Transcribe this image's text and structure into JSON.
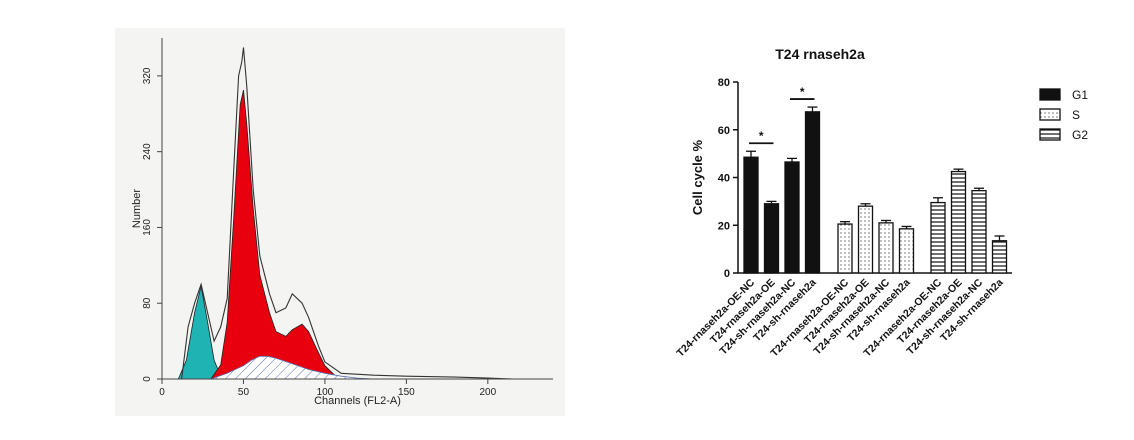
{
  "chart_data": [
    {
      "type": "area",
      "xlabel": "Channels (FL2-A)",
      "ylabel": "Number",
      "x_ticks": [
        "0",
        "50",
        "100",
        "150",
        "200"
      ],
      "y_ticks": [
        "0",
        "80",
        "160",
        "240",
        "320"
      ],
      "xlim": [
        0,
        240
      ],
      "ylim": [
        0,
        360
      ],
      "series": [
        {
          "name": "",
          "color": "#1fb3b3",
          "fill": "solid",
          "x": [
            10,
            15,
            20,
            24,
            28,
            32,
            36,
            40
          ],
          "y": [
            0,
            20,
            70,
            98,
            60,
            20,
            3,
            0
          ]
        },
        {
          "name": "",
          "color": "#e8000e",
          "fill": "solid",
          "x": [
            30,
            36,
            40,
            44,
            48,
            50,
            52,
            56,
            60,
            66,
            70,
            76,
            80,
            86,
            90,
            96,
            100,
            106,
            110
          ],
          "y": [
            0,
            15,
            60,
            170,
            290,
            305,
            270,
            180,
            110,
            70,
            50,
            45,
            52,
            58,
            50,
            28,
            14,
            4,
            0
          ]
        },
        {
          "name": "",
          "color": "#5a6fb0",
          "fill": "hatch",
          "x": [
            30,
            40,
            50,
            55,
            60,
            65,
            70,
            80,
            90,
            100,
            110,
            120,
            130
          ],
          "y": [
            0,
            6,
            14,
            20,
            24,
            24,
            22,
            16,
            10,
            6,
            3,
            1,
            0
          ]
        },
        {
          "name": "",
          "color": "#333333",
          "fill": "none",
          "x": [
            12,
            16,
            20,
            24,
            28,
            32,
            36,
            40,
            44,
            47,
            49,
            50,
            52,
            56,
            60,
            66,
            70,
            76,
            80,
            86,
            90,
            96,
            100,
            110,
            130,
            150,
            180,
            200,
            215
          ],
          "y": [
            0,
            55,
            80,
            100,
            70,
            40,
            55,
            85,
            220,
            320,
            335,
            350,
            310,
            200,
            130,
            90,
            70,
            75,
            90,
            80,
            65,
            35,
            18,
            6,
            4,
            3,
            2,
            1,
            0
          ]
        }
      ]
    },
    {
      "type": "bar",
      "title": "T24 rnaseh2a",
      "ylabel": "Cell cycle %",
      "ylim": [
        0,
        80
      ],
      "y_ticks": [
        "0",
        "20",
        "40",
        "60",
        "80"
      ],
      "categories": [
        "T24-rnaseh2a-OE-NC",
        "T24-rnaseh2a-OE",
        "T24-sh-rnaseh2a-NC",
        "T24-sh-rnaseh2a"
      ],
      "series": [
        {
          "name": "G1",
          "pattern": "solid",
          "values": [
            48.5,
            29,
            46.5,
            67.5
          ],
          "errors": [
            2.5,
            1,
            1.5,
            2
          ]
        },
        {
          "name": "S",
          "pattern": "dots",
          "values": [
            20.5,
            28,
            21,
            18.5
          ],
          "errors": [
            1,
            1,
            1,
            1
          ]
        },
        {
          "name": "G2",
          "pattern": "hlines",
          "values": [
            29.5,
            42.5,
            34.5,
            13.5
          ],
          "errors": [
            2,
            1,
            1,
            2
          ]
        }
      ],
      "significance": [
        {
          "label": "*",
          "between": [
            0,
            1
          ],
          "series": "G1"
        },
        {
          "label": "*",
          "between": [
            2,
            3
          ],
          "series": "G1"
        }
      ],
      "legend": "top-right"
    }
  ]
}
